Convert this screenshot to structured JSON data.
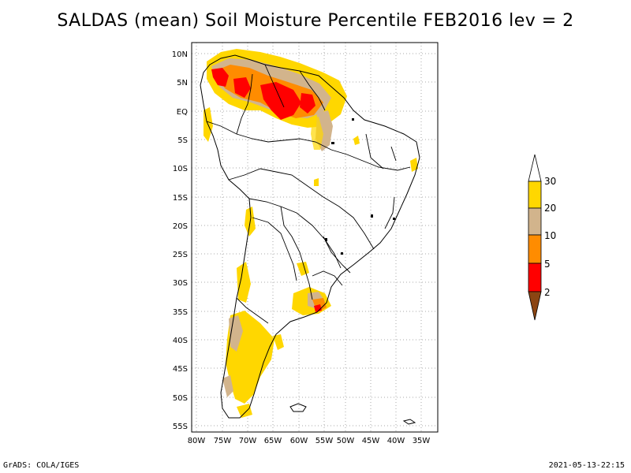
{
  "title": "SALDAS (mean) Soil Moisture Percentile FEB2016 lev = 2",
  "footer": {
    "left": "GrADS: COLA/IGES",
    "right": "2021-05-13-22:15"
  },
  "map": {
    "lat_labels": [
      "10N",
      "5N",
      "EQ",
      "5S",
      "10S",
      "15S",
      "20S",
      "25S",
      "30S",
      "35S",
      "40S",
      "45S",
      "50S",
      "55S"
    ],
    "lon_labels": [
      "80W",
      "75W",
      "70W",
      "65W",
      "60W",
      "55W",
      "50W",
      "45W",
      "40W",
      "35W"
    ],
    "lat_range": [
      -56,
      12
    ],
    "lon_range": [
      -81,
      -33
    ]
  },
  "legend": {
    "labels": [
      "30",
      "20",
      "10",
      "5",
      "2"
    ],
    "colors": {
      "above_30": "#ffffff",
      "20_30": "#ffd700",
      "10_20": "#d2b48c",
      "5_10": "#ff8c00",
      "2_5": "#ff0000",
      "below_2": "#8b4513"
    }
  }
}
